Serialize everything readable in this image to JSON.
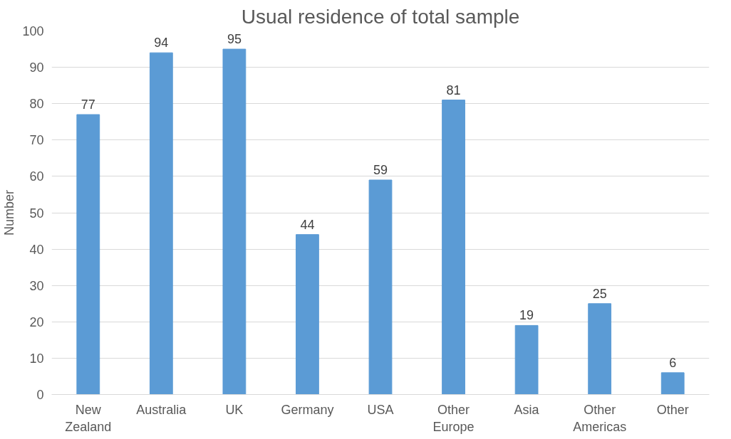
{
  "chart_data": {
    "type": "bar",
    "title": "Usual residence of total sample",
    "ylabel": "Number",
    "categories": [
      "New Zealand",
      "Australia",
      "UK",
      "Germany",
      "USA",
      "Other Europe",
      "Asia",
      "Other Americas",
      "Other"
    ],
    "values": [
      77,
      94,
      95,
      44,
      59,
      81,
      19,
      25,
      6
    ],
    "color": "#5b9bd5",
    "ylim": [
      0,
      100
    ],
    "yticks": [
      0,
      10,
      20,
      30,
      40,
      50,
      60,
      70,
      80,
      90,
      100
    ],
    "grid": "y",
    "data_labels": true
  }
}
